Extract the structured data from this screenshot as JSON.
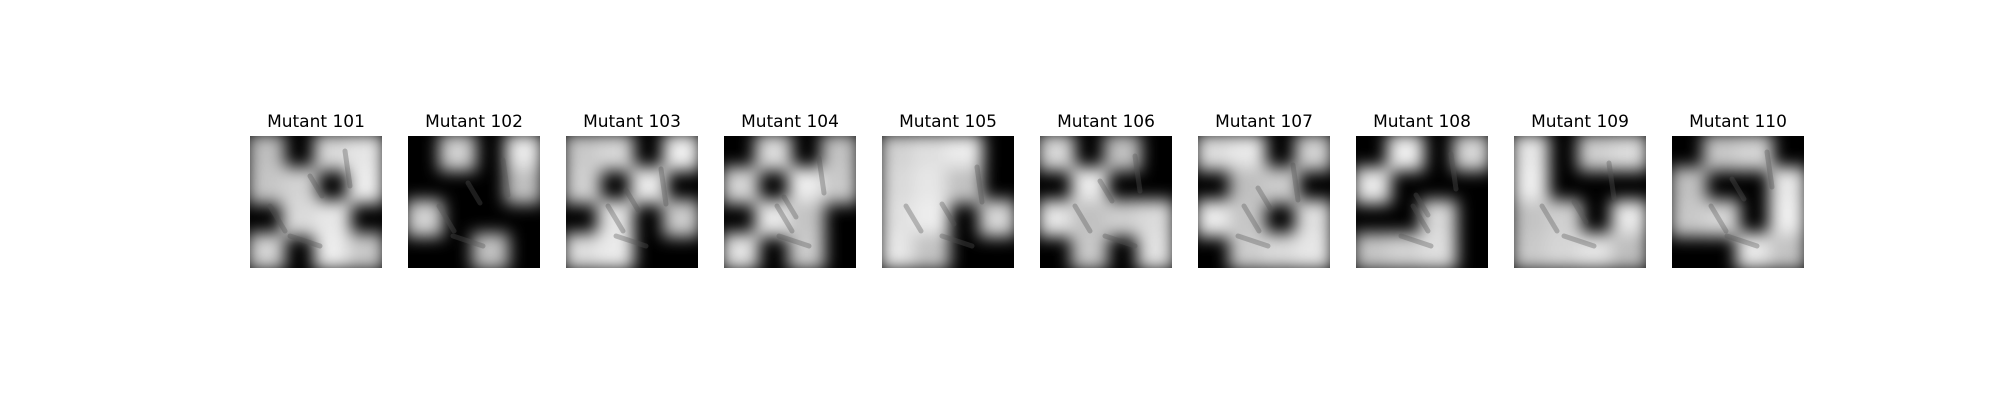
{
  "panels": [
    {
      "title": "Mutant 101",
      "kind": "masked-grayscale-image"
    },
    {
      "title": "Mutant 102",
      "kind": "masked-grayscale-image"
    },
    {
      "title": "Mutant 103",
      "kind": "masked-grayscale-image"
    },
    {
      "title": "Mutant 104",
      "kind": "masked-grayscale-image"
    },
    {
      "title": "Mutant 105",
      "kind": "masked-grayscale-image"
    },
    {
      "title": "Mutant 106",
      "kind": "masked-grayscale-image"
    },
    {
      "title": "Mutant 107",
      "kind": "masked-grayscale-image"
    },
    {
      "title": "Mutant 108",
      "kind": "masked-grayscale-image"
    },
    {
      "title": "Mutant 109",
      "kind": "masked-grayscale-image"
    },
    {
      "title": "Mutant 110",
      "kind": "masked-grayscale-image"
    }
  ],
  "colors": {
    "background": "#ffffff",
    "title": "#000000"
  }
}
